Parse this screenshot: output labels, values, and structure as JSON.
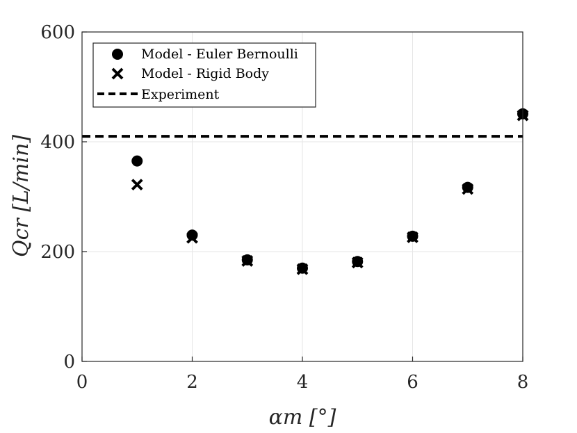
{
  "chart_data": {
    "type": "scatter",
    "xlabel": "αm [°]",
    "ylabel": "Qcr [L/min]",
    "xlim": [
      0,
      8
    ],
    "ylim": [
      0,
      600
    ],
    "xticks": [
      0,
      2,
      4,
      6,
      8
    ],
    "yticks": [
      0,
      200,
      400,
      600
    ],
    "grid": true,
    "legend_position": "top-left",
    "series": [
      {
        "name": "Model - Euler Bernoulli",
        "marker": "circle",
        "color": "#000000",
        "points": [
          [
            1,
            365
          ],
          [
            2,
            230
          ],
          [
            3,
            185
          ],
          [
            4,
            170
          ],
          [
            5,
            182
          ],
          [
            6,
            228
          ],
          [
            7,
            317
          ],
          [
            8,
            451
          ]
        ]
      },
      {
        "name": "Model - Rigid Body",
        "marker": "x",
        "color": "#000000",
        "points": [
          [
            1,
            322
          ],
          [
            2,
            225
          ],
          [
            3,
            183
          ],
          [
            4,
            168
          ],
          [
            5,
            180
          ],
          [
            6,
            226
          ],
          [
            7,
            314
          ],
          [
            8,
            448
          ]
        ]
      },
      {
        "name": "Experiment",
        "marker": "dashed-line",
        "color": "#000000",
        "value": 410
      }
    ]
  }
}
